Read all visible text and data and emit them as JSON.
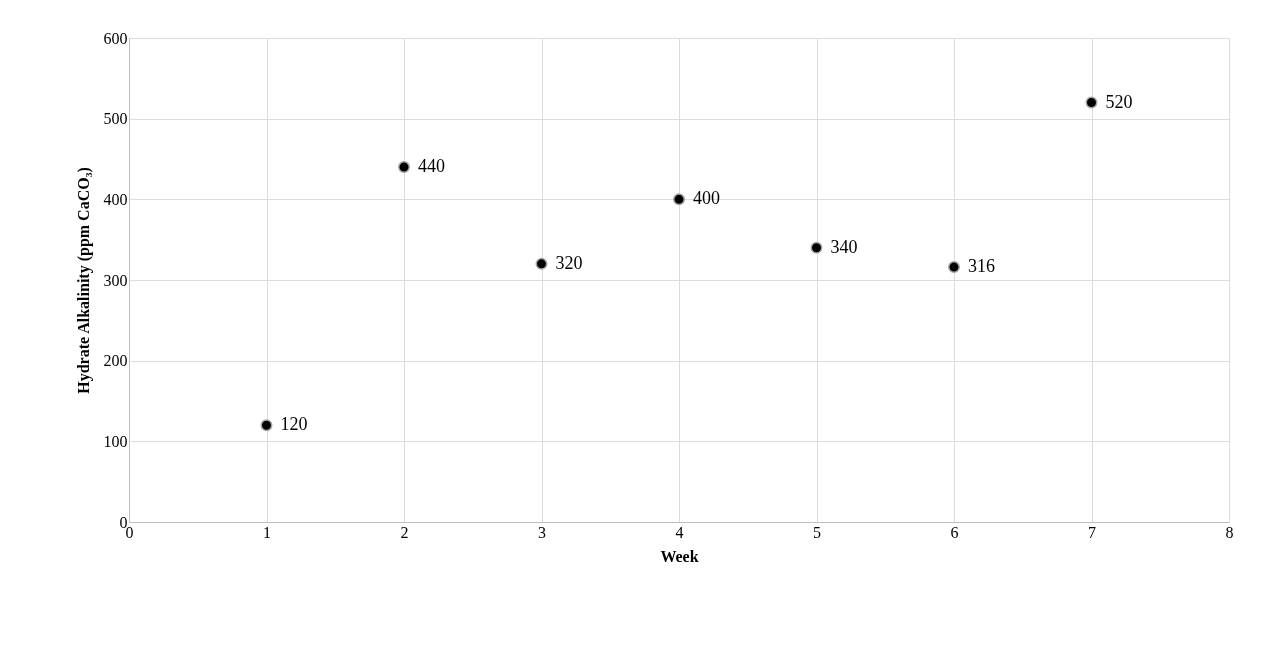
{
  "chart_data": {
    "type": "scatter",
    "xlabel": "Week",
    "ylabel": "Hydrate Alkalinity  (ppm CaCO₃)",
    "x": [
      1,
      2,
      3,
      4,
      5,
      6,
      7
    ],
    "series": [
      {
        "color": "#000000",
        "values": [
          120,
          440,
          320,
          400,
          340,
          316,
          520
        ]
      }
    ],
    "xlim": [
      0,
      8
    ],
    "xticks": [
      0,
      1,
      2,
      3,
      4,
      5,
      6,
      7,
      8
    ],
    "ylim": [
      0,
      600
    ],
    "yticks": [
      0,
      100,
      200,
      300,
      400,
      500,
      600
    ],
    "grid": true,
    "marker": "circle",
    "data_labels": true
  }
}
